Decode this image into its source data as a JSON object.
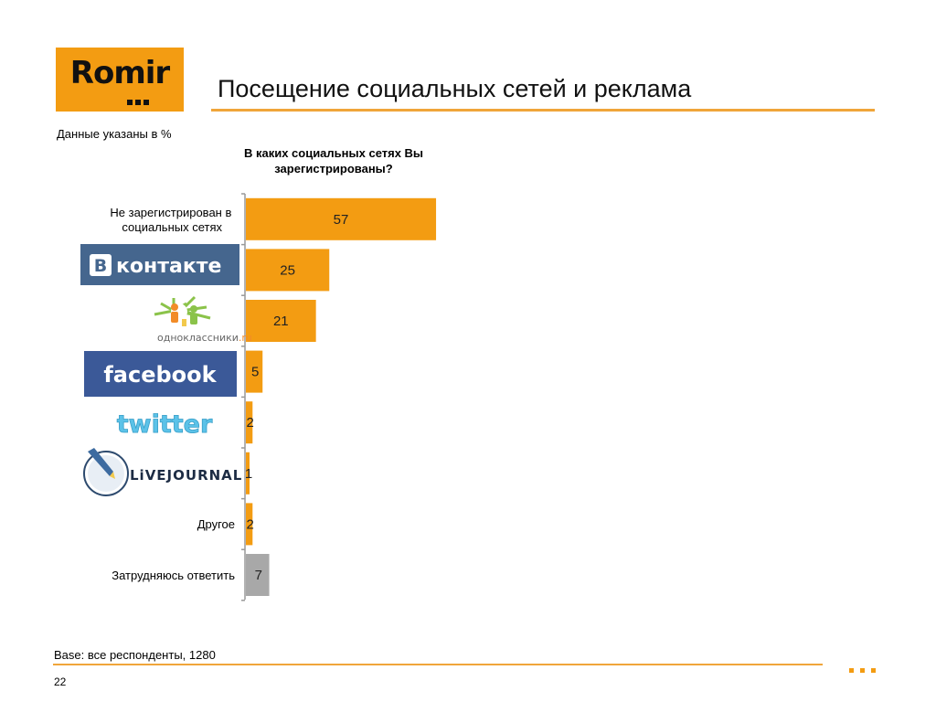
{
  "header": {
    "logo_text": "Romir",
    "title": "Посещение социальных сетей и реклама"
  },
  "note": "Данные указаны в %",
  "question": "В каких социальных сетях Вы зарегистрированы?",
  "footer": {
    "base": "Base: все респонденты, 1280",
    "page_number": "22"
  },
  "colors": {
    "bar": "#f39c12",
    "bar_muted": "#a8a8a8",
    "accent": "#f0a53a",
    "vk_blue": "#45668e",
    "facebook_blue": "#3b5998",
    "twitter_blue": "#5bc2e8"
  },
  "chart_data": {
    "type": "bar",
    "orientation": "horizontal",
    "title": "В каких социальных сетях Вы зарегистрированы?",
    "unit": "%",
    "xlim": [
      0,
      100
    ],
    "grid": false,
    "categories": [
      "Не зарегистрирован в социальных сетях",
      "ВКонтакте",
      "одноклассники.ru",
      "facebook",
      "twitter",
      "LiveJournal",
      "Другое",
      "Затрудняюсь ответить"
    ],
    "category_display": [
      "text",
      "logo",
      "logo",
      "logo",
      "logo",
      "logo",
      "text",
      "text"
    ],
    "values": [
      57,
      25,
      21,
      5,
      2,
      1,
      2,
      7
    ],
    "bar_colors": [
      "#f39c12",
      "#f39c12",
      "#f39c12",
      "#f39c12",
      "#f39c12",
      "#f39c12",
      "#f39c12",
      "#a8a8a8"
    ]
  }
}
